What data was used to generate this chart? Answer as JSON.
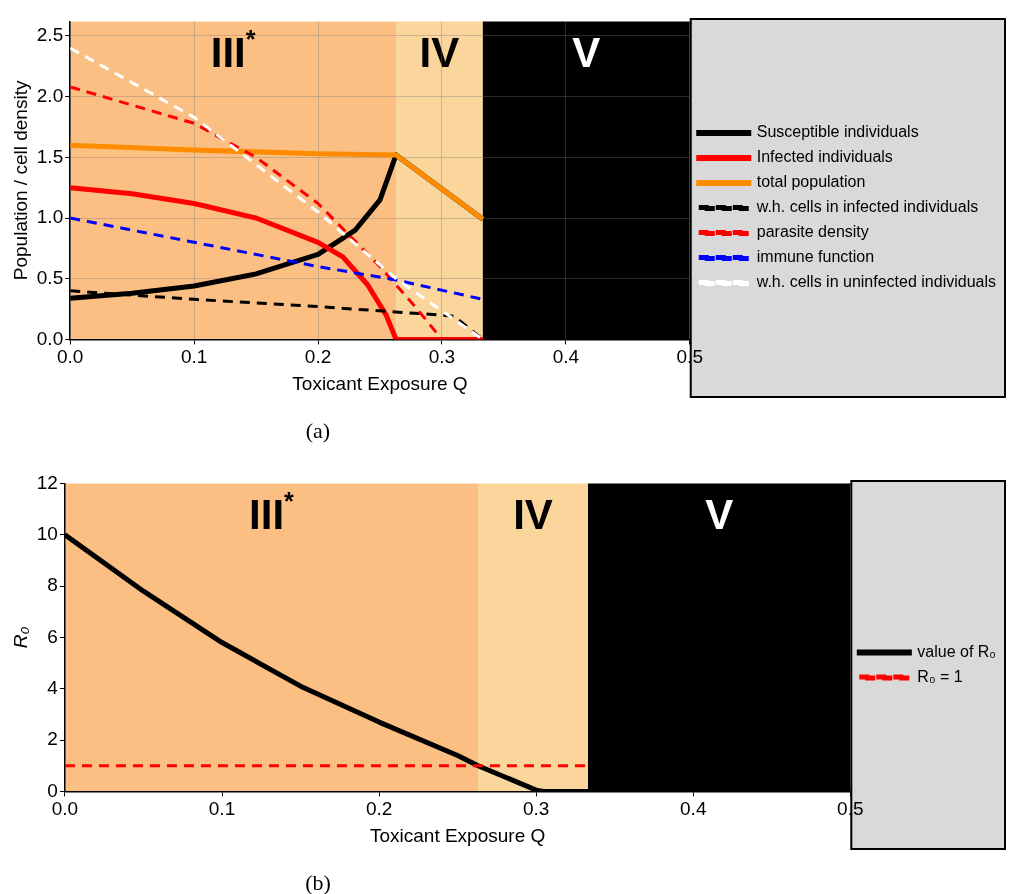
{
  "chart_data": [
    {
      "type": "line",
      "xlabel": "Toxicant Exposure Q",
      "ylabel": "Population / cell density",
      "xlim": [
        0,
        0.5
      ],
      "ylim": [
        0,
        2.62
      ],
      "xticks": [
        {
          "value": 0,
          "label": "0.0"
        },
        0.1,
        0.2,
        0.3,
        0.4,
        0.5
      ],
      "yticks": [
        {
          "value": 0,
          "label": "0.0"
        },
        0.5,
        {
          "value": 1,
          "label": "1.0"
        },
        1.5,
        {
          "value": 2,
          "label": "2.0"
        },
        2.5
      ],
      "grid": true,
      "legend": "right",
      "marker": "none",
      "bands": [
        {
          "axis": "x",
          "from": 0,
          "to": 0.263,
          "label": "III$^{*}$",
          "color": "#fbbf83"
        },
        {
          "axis": "x",
          "from": 0.263,
          "to": 0.333,
          "label": "IV",
          "color": "#fad69c"
        },
        {
          "axis": "x",
          "from": 0.333,
          "to": 0.5,
          "label": "V",
          "color": "#000000"
        }
      ],
      "series": [
        {
          "name": "Susceptible individuals",
          "color": "#000000",
          "line_style": "solid",
          "x": [
            0,
            0.05,
            0.1,
            0.15,
            0.2,
            0.23,
            0.25,
            0.263,
            0.333
          ],
          "values": [
            0.34,
            0.38,
            0.44,
            0.54,
            0.7,
            0.9,
            1.15,
            1.52,
            0.99
          ]
        },
        {
          "name": "Infected individuals",
          "color": "#ff0000",
          "line_style": "solid",
          "x": [
            0,
            0.05,
            0.1,
            0.15,
            0.2,
            0.22,
            0.24,
            0.255,
            0.263,
            0.333
          ],
          "values": [
            1.25,
            1.2,
            1.12,
            1.0,
            0.8,
            0.68,
            0.45,
            0.2,
            0,
            0
          ]
        },
        {
          "name": "total population",
          "color": "#ff8c00",
          "line_style": "solid",
          "x": [
            0,
            0.1,
            0.2,
            0.263,
            0.333
          ],
          "values": [
            1.6,
            1.56,
            1.53,
            1.52,
            0.99
          ]
        },
        {
          "name": "w.h. cells in infected individuals",
          "color": "#000000",
          "line_style": "dashed",
          "x": [
            0,
            0.1,
            0.2,
            0.3,
            0.31,
            0.333
          ],
          "values": [
            0.4,
            0.33,
            0.27,
            0.2,
            0.19,
            0
          ]
        },
        {
          "name": "parasite density",
          "color": "#ff0000",
          "line_style": "dashed",
          "x": [
            0,
            0.1,
            0.15,
            0.2,
            0.25,
            0.28,
            0.3
          ],
          "values": [
            2.08,
            1.78,
            1.5,
            1.12,
            0.6,
            0.25,
            0
          ]
        },
        {
          "name": "immune function",
          "color": "#0000ff",
          "line_style": "dashed",
          "x": [
            0,
            0.1,
            0.2,
            0.263,
            0.333
          ],
          "values": [
            1.0,
            0.8,
            0.6,
            0.49,
            0.33
          ]
        },
        {
          "name": "w.h. cells in uninfected individuals",
          "color": "#ffffff",
          "line_style": "dashed",
          "x": [
            0,
            0.1,
            0.2,
            0.263,
            0.333
          ],
          "values": [
            2.4,
            1.83,
            1.05,
            0.5,
            0
          ]
        }
      ],
      "annotations": [
        "(a)"
      ]
    },
    {
      "type": "line",
      "xlabel": "Toxicant Exposure Q",
      "ylabel": "R₀",
      "xlim": [
        0,
        0.5
      ],
      "ylim": [
        0,
        12
      ],
      "xticks": [
        {
          "value": 0,
          "label": "0.0"
        },
        0.1,
        0.2,
        0.3,
        0.4,
        0.5
      ],
      "yticks": [
        0,
        2,
        4,
        6,
        8,
        10,
        12
      ],
      "grid": false,
      "legend": "right",
      "marker": "none",
      "bands": [
        {
          "axis": "x",
          "from": 0,
          "to": 0.263,
          "label": "III$^{*}$",
          "color": "#fbbf83"
        },
        {
          "axis": "x",
          "from": 0.263,
          "to": 0.333,
          "label": "IV",
          "color": "#fad69c"
        },
        {
          "axis": "x",
          "from": 0.333,
          "to": 0.5,
          "label": "V",
          "color": "#000000"
        }
      ],
      "series": [
        {
          "name": "value of R₀",
          "color": "#000000",
          "line_style": "solid",
          "x": [
            0,
            0.05,
            0.1,
            0.15,
            0.2,
            0.25,
            0.263,
            0.3,
            0.305,
            0.333
          ],
          "values": [
            10,
            7.8,
            5.8,
            4.1,
            2.7,
            1.4,
            1.0,
            0.05,
            0,
            0
          ]
        },
        {
          "name": "R₀ = 1",
          "color": "#ff0000",
          "line_style": "dashed",
          "x": [
            0,
            0.333
          ],
          "values": [
            1,
            1
          ]
        }
      ],
      "annotations": [
        "(b)"
      ]
    }
  ]
}
